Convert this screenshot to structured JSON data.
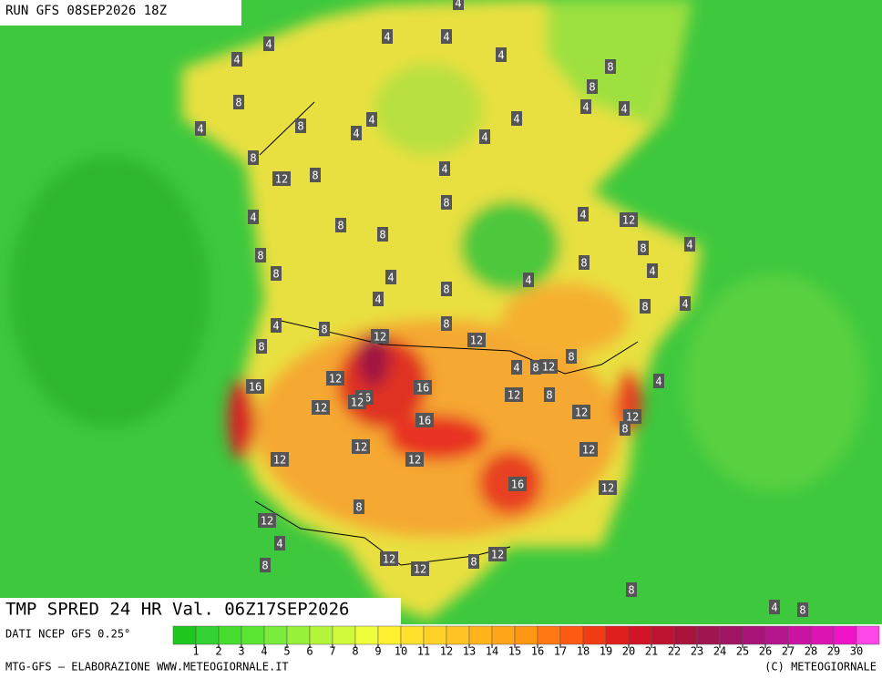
{
  "header": {
    "title": "RUN GFS 08SEP2026 18Z"
  },
  "map": {
    "labels": [
      4,
      4,
      4,
      4,
      4,
      8,
      8,
      4,
      4,
      8,
      8,
      4,
      4,
      4,
      4,
      4,
      8,
      12,
      8,
      4,
      8,
      4,
      12,
      4,
      8,
      8,
      4,
      8,
      8,
      8,
      4,
      8,
      4,
      4,
      8,
      4,
      8,
      4,
      4,
      8,
      12,
      8,
      12,
      8,
      4,
      8,
      12,
      8,
      12,
      4,
      16,
      16,
      12,
      16,
      12,
      8,
      12,
      16,
      12,
      12,
      8,
      12,
      12,
      12,
      12,
      16,
      12,
      8,
      12,
      4,
      12,
      12,
      8,
      12,
      8,
      8,
      4,
      8,
      4
    ]
  },
  "footer": {
    "title": "TMP SPRED 24 HR Val. 06Z17SEP2026",
    "source": "DATI NCEP GFS 0.25°",
    "credit": "MTG-GFS — ELABORAZIONE WWW.METEOGIORNALE.IT",
    "copyright": "(C) METEOGIORNALE"
  },
  "legend": {
    "ticks": [
      1,
      2,
      3,
      4,
      5,
      6,
      7,
      8,
      9,
      10,
      11,
      12,
      13,
      14,
      15,
      16,
      17,
      18,
      19,
      20,
      21,
      22,
      23,
      24,
      25,
      26,
      27,
      28,
      29,
      30
    ],
    "colors": [
      "#1ec81e",
      "#32d232",
      "#46dc2d",
      "#5ae632",
      "#78eb3c",
      "#96f03c",
      "#b4f53c",
      "#d2fa3c",
      "#f0ff3c",
      "#fff032",
      "#ffe12d",
      "#ffd228",
      "#ffc323",
      "#ffb41e",
      "#ffa519",
      "#ff9614",
      "#ff7814",
      "#ff5a14",
      "#f03c14",
      "#e11e1e",
      "#d21428",
      "#be1432",
      "#aa143c",
      "#a01450",
      "#a01464",
      "#aa1478",
      "#b4148c",
      "#c814a0",
      "#dc14b4",
      "#f014c8",
      "#ff46e6"
    ]
  }
}
